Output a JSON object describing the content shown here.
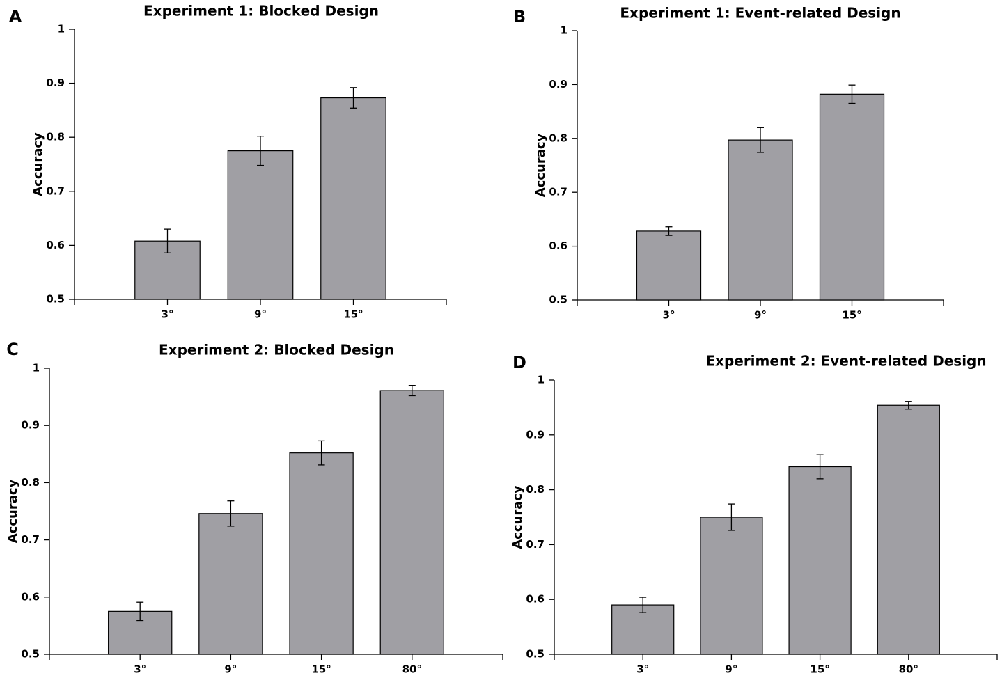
{
  "chart_data": [
    {
      "type": "bar",
      "panel": "A",
      "title": "Experiment 1: Blocked Design",
      "ylabel": "Accuracy",
      "categories": [
        "3°",
        "9°",
        "15°"
      ],
      "values": [
        0.608,
        0.775,
        0.873
      ],
      "errors": [
        0.022,
        0.027,
        0.019
      ],
      "color": "#a09fa4",
      "ylim": [
        0.5,
        1
      ],
      "yticks": [
        0.5,
        0.6,
        0.7,
        0.8,
        0.9,
        1
      ]
    },
    {
      "type": "bar",
      "panel": "B",
      "title": "Experiment 1: Event-related Design",
      "ylabel": "Accuracy",
      "categories": [
        "3°",
        "9°",
        "15°"
      ],
      "values": [
        0.628,
        0.797,
        0.882
      ],
      "errors": [
        0.008,
        0.023,
        0.017
      ],
      "color": "#a09fa4",
      "ylim": [
        0.5,
        1
      ],
      "yticks": [
        0.5,
        0.6,
        0.7,
        0.8,
        0.9,
        1
      ]
    },
    {
      "type": "bar",
      "panel": "C",
      "title": "Experiment 2: Blocked Design",
      "ylabel": "Accuracy",
      "categories": [
        "3°",
        "9°",
        "15°",
        "80°"
      ],
      "values": [
        0.575,
        0.746,
        0.852,
        0.961
      ],
      "errors": [
        0.016,
        0.022,
        0.021,
        0.009
      ],
      "color": "#a09fa4",
      "ylim": [
        0.5,
        1
      ],
      "yticks": [
        0.5,
        0.6,
        0.7,
        0.8,
        0.9,
        1
      ]
    },
    {
      "type": "bar",
      "panel": "D",
      "title": "Experiment 2: Event-related Design",
      "ylabel": "Accuracy",
      "categories": [
        "3°",
        "9°",
        "15°",
        "80°"
      ],
      "values": [
        0.59,
        0.75,
        0.842,
        0.954
      ],
      "errors": [
        0.014,
        0.024,
        0.022,
        0.007
      ],
      "color": "#a09fa4",
      "ylim": [
        0.5,
        1
      ],
      "yticks": [
        0.5,
        0.6,
        0.7,
        0.8,
        0.9,
        1
      ]
    }
  ]
}
